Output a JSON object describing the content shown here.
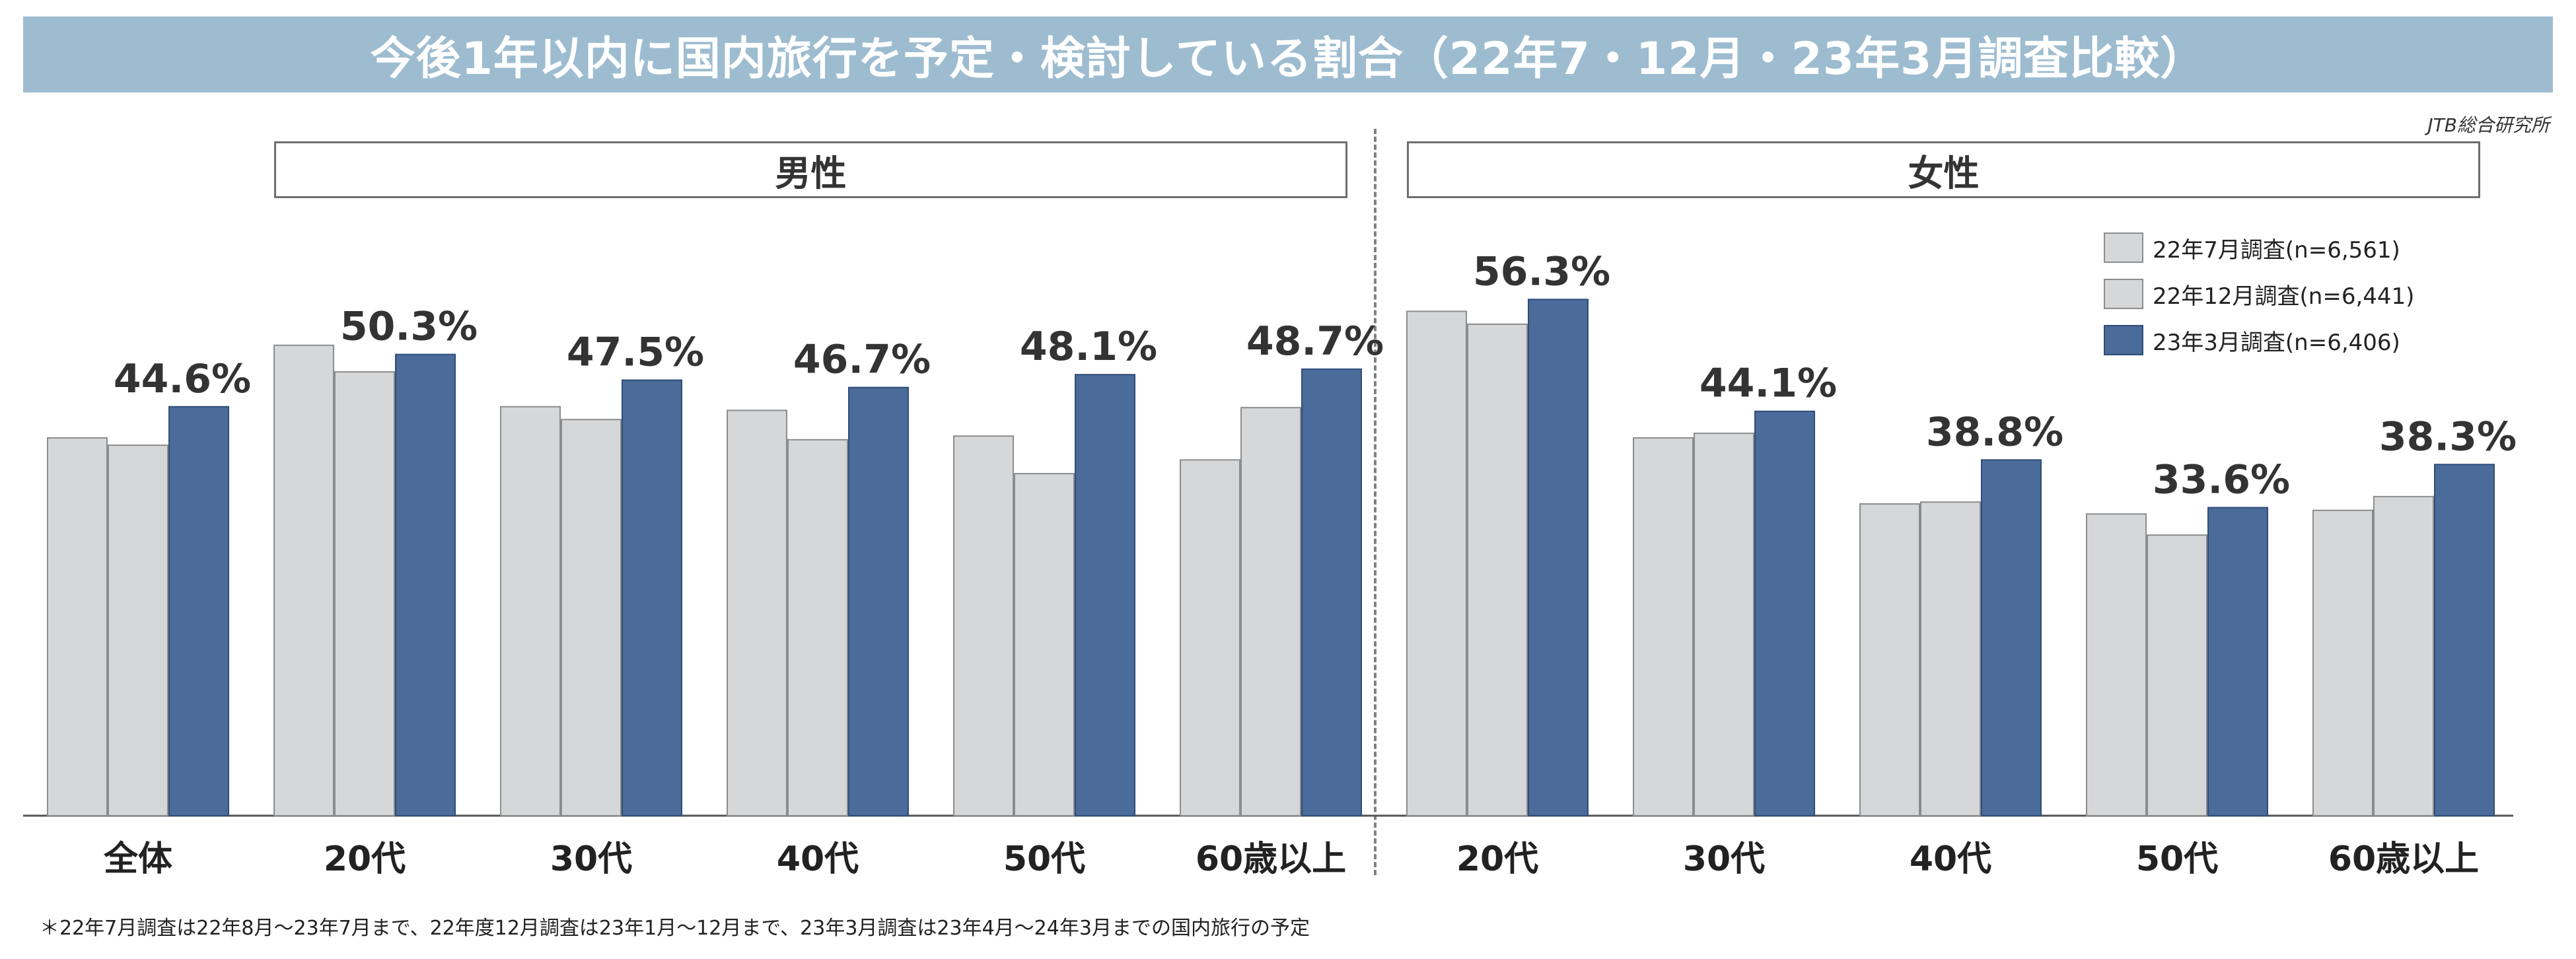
{
  "title": "今後1年以内に国内旅行を予定・検討している割合（22年7・12月・23年3月調査比較）",
  "source": "JTB総合研究所",
  "groups": {
    "male": "男性",
    "female": "女性"
  },
  "footnote": "＊22年7月調査は22年8月～23年7月まで、22年度12月調査は23年1月～12月まで、23年3月調査は23年4月～24年3月までの国内旅行の予定",
  "colors": {
    "light_bar": "#d6d7d9",
    "light_border": "#8c8c8c",
    "dark_bar": "#4b6b9b",
    "dark_border": "#2f4d78"
  },
  "chart_data": {
    "type": "bar",
    "categories": [
      "全体",
      "20代",
      "30代",
      "40代",
      "50代",
      "60歳以上",
      "20代",
      "30代",
      "40代",
      "50代",
      "60歳以上"
    ],
    "category_groups": [
      "",
      "男性",
      "男性",
      "男性",
      "男性",
      "男性",
      "女性",
      "女性",
      "女性",
      "女性",
      "女性"
    ],
    "series": [
      {
        "name": "22年7月調査(n=6,561)",
        "values": [
          41.2,
          51.3,
          44.6,
          44.2,
          41.4,
          38.8,
          55.0,
          41.2,
          34.0,
          32.9,
          33.3
        ],
        "color": "#d6d7d9"
      },
      {
        "name": "22年12月調査(n=6,441)",
        "values": [
          40.4,
          48.4,
          43.2,
          41.0,
          37.3,
          44.5,
          53.6,
          41.7,
          34.2,
          30.6,
          34.8
        ],
        "color": "#d6d7d9"
      },
      {
        "name": "23年3月調査(n=6,406)",
        "values": [
          44.6,
          50.3,
          47.5,
          46.7,
          48.1,
          48.7,
          56.3,
          44.1,
          38.8,
          33.6,
          38.3
        ],
        "color": "#4b6b9b"
      }
    ],
    "data_labels": [
      "44.6%",
      "50.3%",
      "47.5%",
      "46.7%",
      "48.1%",
      "48.7%",
      "56.3%",
      "44.1%",
      "38.8%",
      "33.6%",
      "38.3%"
    ],
    "ylim": [
      0,
      60
    ]
  }
}
